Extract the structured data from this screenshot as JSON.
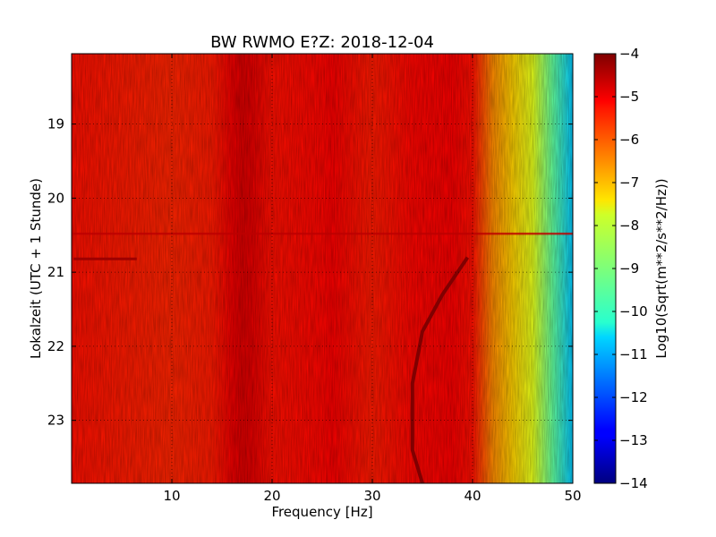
{
  "chart_data": {
    "type": "heatmap",
    "title": "BW RWMO E?Z: 2018-12-04",
    "xlabel": "Frequency [Hz]",
    "ylabel": "Lokalzeit (UTC + 1 Stunde)",
    "xlim": [
      0,
      50
    ],
    "ylim": [
      18.05,
      23.85
    ],
    "y_inverted": true,
    "x_ticks": [
      10,
      20,
      30,
      40,
      50
    ],
    "y_ticks": [
      19,
      20,
      21,
      22,
      23
    ],
    "grid": true,
    "colormap": "jet",
    "colorbar": {
      "label": "Log10(Sqrt(m**2/s**2/Hz))",
      "range": [
        -14,
        -4
      ],
      "ticks": [
        -4,
        -5,
        -6,
        -7,
        -8,
        -9,
        -10,
        -11,
        -12,
        -13,
        -14
      ]
    },
    "spectrum_profile": {
      "frequency_hz": [
        0,
        5,
        10,
        14,
        16,
        17,
        18,
        20,
        25,
        26,
        30,
        34,
        38,
        40,
        41,
        42,
        44,
        46,
        48,
        50
      ],
      "log_amplitude": [
        -5.4,
        -5.5,
        -5.6,
        -5.5,
        -5.1,
        -4.9,
        -5.0,
        -5.4,
        -5.3,
        -5.2,
        -5.5,
        -5.3,
        -5.2,
        -5.4,
        -6.0,
        -6.6,
        -7.3,
        -8.0,
        -9.3,
        -10.8
      ]
    },
    "features": [
      {
        "label": "broadband level change",
        "time": 20.48
      },
      {
        "label": "spectral line",
        "time": 20.82,
        "frequency_range_hz": [
          0.2,
          6.5
        ]
      },
      {
        "label": "gliding tone",
        "points": [
          [
            39.5,
            20.8
          ],
          [
            37.0,
            21.3
          ],
          [
            35.0,
            21.8
          ],
          [
            34.0,
            22.5
          ],
          [
            34.0,
            23.4
          ],
          [
            35.0,
            23.85
          ]
        ]
      }
    ]
  }
}
